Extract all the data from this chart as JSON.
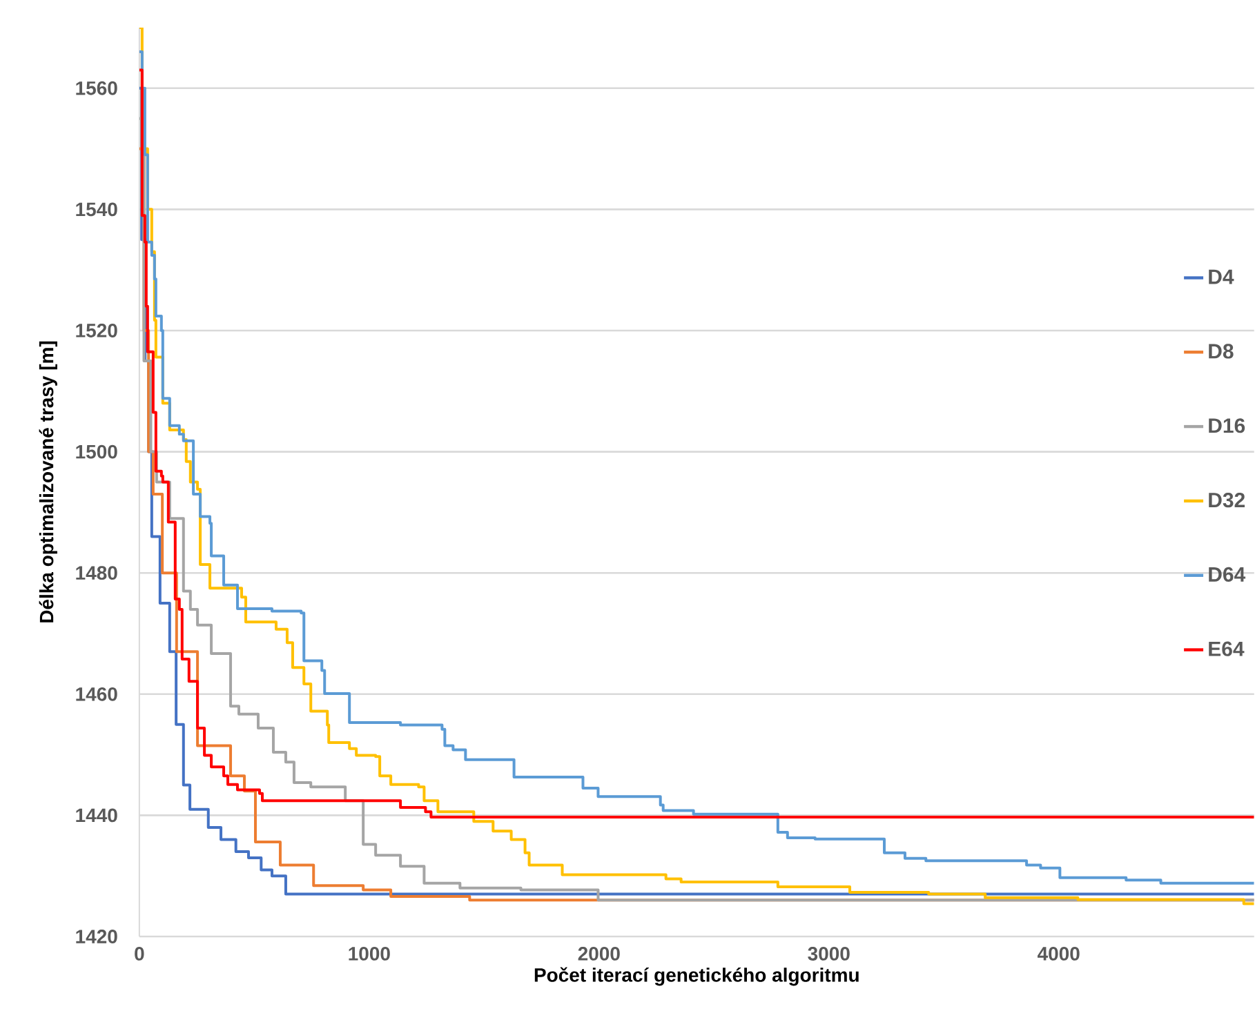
{
  "chart_data": {
    "type": "step",
    "xlabel": "Počet iterací genetického algoritmu",
    "ylabel": "Délka optimalizované trasy [m]",
    "xlim": [
      0,
      4850
    ],
    "ylim": [
      1420,
      1570
    ],
    "xticks": [
      0,
      1000,
      2000,
      3000,
      4000
    ],
    "yticks": [
      1420,
      1440,
      1460,
      1480,
      1500,
      1520,
      1540,
      1560
    ],
    "grid": "y",
    "legend": "right",
    "series": [
      {
        "name": "D4",
        "color": "#4472c4",
        "x": [
          0,
          10,
          25,
          40,
          54,
          90,
          132,
          160,
          192,
          220,
          300,
          355,
          420,
          475,
          530,
          577,
          637,
          4850
        ],
        "values": [
          1560,
          1535,
          1515,
          1500,
          1486,
          1475,
          1467,
          1455,
          1445,
          1441,
          1438,
          1436,
          1434,
          1433,
          1431,
          1430,
          1427,
          1427
        ]
      },
      {
        "name": "D8",
        "color": "#ed7d31",
        "x": [
          0,
          20,
          40,
          60,
          100,
          162,
          253,
          397,
          457,
          505,
          613,
          758,
          974,
          1094,
          1437,
          4850
        ],
        "values": [
          1550,
          1520,
          1500,
          1493,
          1480,
          1467,
          1451.5,
          1446.5,
          1444,
          1435.6,
          1431.8,
          1428.4,
          1427.7,
          1426.6,
          1426,
          1426
        ]
      },
      {
        "name": "D16",
        "color": "#a5a5a5",
        "x": [
          0,
          20,
          50,
          75,
          132,
          192,
          222,
          253,
          313,
          397,
          433,
          517,
          583,
          637,
          673,
          746,
          896,
          974,
          1028,
          1136,
          1239,
          1395,
          1660,
          1996,
          4850
        ],
        "values": [
          1555,
          1515,
          1500,
          1495,
          1489,
          1477,
          1474,
          1471.4,
          1466.7,
          1458,
          1456.7,
          1454.4,
          1450.4,
          1448.8,
          1445.4,
          1444.7,
          1442.4,
          1435.2,
          1433.4,
          1431.6,
          1428.8,
          1428,
          1427.7,
          1426,
          1426
        ]
      },
      {
        "name": "D32",
        "color": "#ffc000",
        "x": [
          0,
          12,
          36,
          54,
          66,
          72,
          102,
          132,
          192,
          204,
          222,
          253,
          265,
          307,
          445,
          463,
          595,
          643,
          667,
          716,
          746,
          818,
          824,
          914,
          944,
          1028,
          1046,
          1094,
          1215,
          1239,
          1299,
          1455,
          1539,
          1618,
          1678,
          1696,
          1840,
          2291,
          2357,
          2778,
          3091,
          3434,
          3680,
          4083,
          4805,
          4850
        ],
        "values": [
          1570,
          1550,
          1540,
          1533,
          1521.7,
          1515.6,
          1508,
          1503.6,
          1502,
          1498.4,
          1495,
          1493.8,
          1481.4,
          1477.5,
          1476,
          1471.9,
          1470.7,
          1468.5,
          1464.4,
          1461.7,
          1457.2,
          1454.9,
          1452,
          1451,
          1449.9,
          1449.7,
          1446.5,
          1445.1,
          1444.7,
          1442.4,
          1440.6,
          1439,
          1437.4,
          1436,
          1433.8,
          1431.8,
          1430.2,
          1429.5,
          1429,
          1428.2,
          1427.3,
          1427,
          1426.4,
          1426.1,
          1425.4,
          1425.4
        ]
      },
      {
        "name": "D64",
        "color": "#5b9bd5",
        "x": [
          0,
          12,
          24,
          36,
          54,
          66,
          72,
          96,
          102,
          132,
          174,
          192,
          235,
          265,
          307,
          313,
          367,
          427,
          577,
          704,
          716,
          794,
          806,
          914,
          1136,
          1317,
          1329,
          1365,
          1419,
          1575,
          1630,
          1930,
          1996,
          2267,
          2279,
          2411,
          2778,
          2820,
          2940,
          3241,
          3331,
          3422,
          3860,
          3921,
          4005,
          4293,
          4444,
          4850
        ],
        "values": [
          1566,
          1560,
          1549,
          1534.6,
          1532.4,
          1528.5,
          1522.4,
          1520,
          1508.8,
          1504.3,
          1502.9,
          1501.8,
          1493,
          1489.3,
          1488.2,
          1482.8,
          1478,
          1474.1,
          1473.7,
          1473.4,
          1465.5,
          1463.9,
          1460.1,
          1455.3,
          1454.9,
          1454.2,
          1451.5,
          1450.8,
          1449.2,
          1449.2,
          1446.3,
          1444.5,
          1443.1,
          1441.7,
          1440.8,
          1440.2,
          1437.2,
          1436.3,
          1436.1,
          1433.8,
          1432.9,
          1432.5,
          1431.8,
          1431.3,
          1429.7,
          1429.3,
          1428.8,
          1428.8
        ]
      },
      {
        "name": "E64",
        "color": "#ff0000",
        "x": [
          0,
          12,
          24,
          30,
          36,
          60,
          72,
          96,
          102,
          126,
          156,
          174,
          186,
          216,
          253,
          283,
          313,
          367,
          385,
          427,
          523,
          535,
          1136,
          1245,
          1269,
          4850
        ],
        "values": [
          1563,
          1539,
          1534.6,
          1524,
          1516.5,
          1506.5,
          1496.8,
          1496,
          1495,
          1488.4,
          1475.7,
          1474,
          1465.8,
          1462.1,
          1454.4,
          1449.9,
          1448,
          1446.5,
          1445.1,
          1444.2,
          1443.6,
          1442.4,
          1441.3,
          1440.6,
          1439.7,
          1439.7
        ]
      }
    ]
  }
}
